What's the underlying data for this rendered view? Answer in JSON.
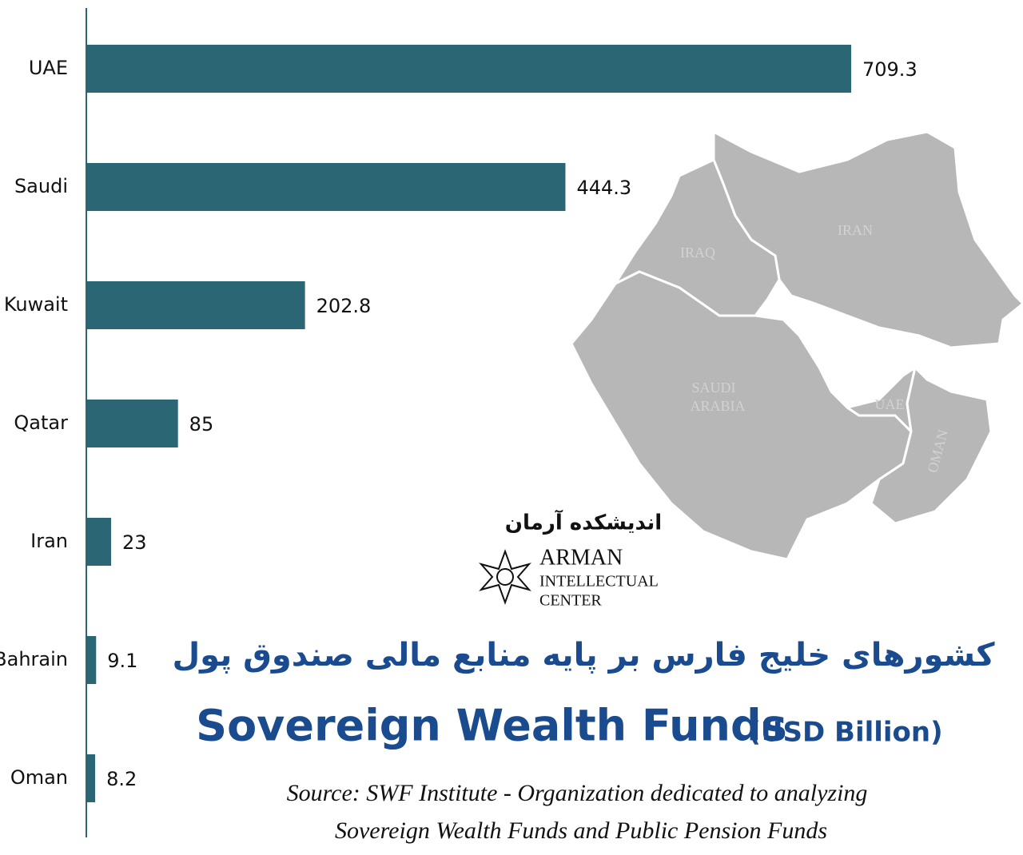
{
  "chart_data": {
    "type": "bar",
    "orientation": "horizontal",
    "persian_title": "کشورهای خلیج فارس بر پایه منابع مالی صندوق پول",
    "title": "Sovereign Wealth Funds",
    "unit": "(USD Billion)",
    "source": [
      "Source: SWF Institute - Organization dedicated to analyzing",
      "Sovereign Wealth Funds and Public Pension Funds"
    ],
    "categories": [
      "UAE",
      "Saudi",
      "Kuwait",
      "Qatar",
      "Iran",
      "Bahrain",
      "Oman"
    ],
    "values": [
      709.3,
      444.3,
      202.8,
      85,
      23,
      9.1,
      8.2
    ],
    "color": "#2b6675",
    "title_color": "#1a4b8e",
    "logo": {
      "persian": "اندیشکده آرمان",
      "lines": [
        "ARMAN",
        "INTELLECTUAL",
        "CENTER"
      ]
    },
    "map_labels": [
      "IRAQ",
      "IRAN",
      "SAUDI",
      "ARABIA",
      "UAE",
      "OMAN"
    ]
  }
}
